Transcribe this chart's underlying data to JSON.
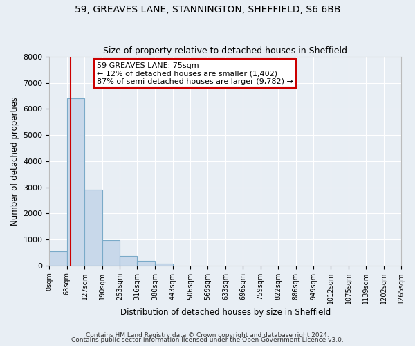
{
  "title1": "59, GREAVES LANE, STANNINGTON, SHEFFIELD, S6 6BB",
  "title2": "Size of property relative to detached houses in Sheffield",
  "xlabel": "Distribution of detached houses by size in Sheffield",
  "ylabel": "Number of detached properties",
  "bin_edges": [
    0,
    63,
    127,
    190,
    253,
    316,
    380,
    443,
    506,
    569,
    633,
    696,
    759,
    822,
    886,
    949,
    1012,
    1075,
    1139,
    1202,
    1265
  ],
  "bar_heights": [
    550,
    6400,
    2920,
    970,
    370,
    170,
    80,
    0,
    0,
    0,
    0,
    0,
    0,
    0,
    0,
    0,
    0,
    0,
    0,
    0
  ],
  "bar_color": "#c8d8ea",
  "bar_edge_color": "#7aaac8",
  "property_size": 75,
  "vline_color": "#cc0000",
  "annotation_line1": "59 GREAVES LANE: 75sqm",
  "annotation_line2": "← 12% of detached houses are smaller (1,402)",
  "annotation_line3": "87% of semi-detached houses are larger (9,782) →",
  "annotation_box_edge": "#cc0000",
  "annotation_box_face": "#ffffff",
  "footnote1": "Contains HM Land Registry data © Crown copyright and database right 2024.",
  "footnote2": "Contains public sector information licensed under the Open Government Licence v3.0.",
  "ylim": [
    0,
    8000
  ],
  "background_color": "#e8eef4",
  "plot_bg_color": "#e8eef4",
  "grid_color": "#ffffff",
  "tick_labels": [
    "0sqm",
    "63sqm",
    "127sqm",
    "190sqm",
    "253sqm",
    "316sqm",
    "380sqm",
    "443sqm",
    "506sqm",
    "569sqm",
    "633sqm",
    "696sqm",
    "759sqm",
    "822sqm",
    "886sqm",
    "949sqm",
    "1012sqm",
    "1075sqm",
    "1139sqm",
    "1202sqm",
    "1265sqm"
  ]
}
